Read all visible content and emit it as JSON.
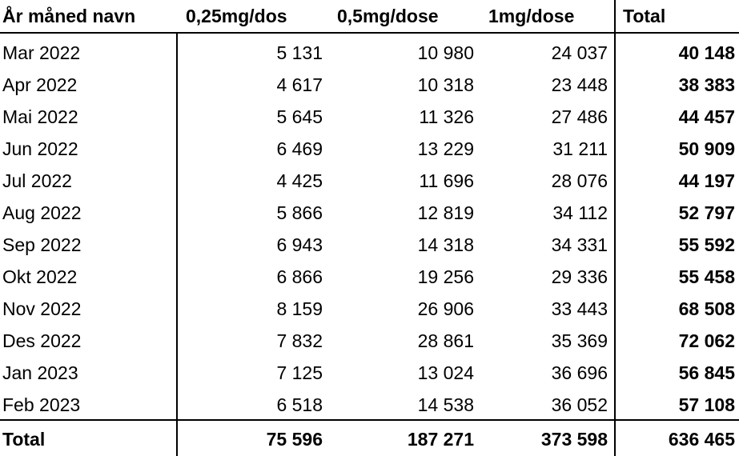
{
  "headers": [
    "År måned navn",
    "0,25mg/dos",
    "0,5mg/dose",
    "1mg/dose",
    "Total"
  ],
  "rows": [
    [
      "Mar 2022",
      "5 131",
      "10 980",
      "24 037",
      "40 148"
    ],
    [
      "Apr 2022",
      "4 617",
      "10 318",
      "23 448",
      "38 383"
    ],
    [
      "Mai 2022",
      "5 645",
      "11 326",
      "27 486",
      "44 457"
    ],
    [
      "Jun 2022",
      "6 469",
      "13 229",
      "31 211",
      "50 909"
    ],
    [
      "Jul 2022",
      "4 425",
      "11 696",
      "28 076",
      "44 197"
    ],
    [
      "Aug 2022",
      "5 866",
      "12 819",
      "34 112",
      "52 797"
    ],
    [
      "Sep 2022",
      "6 943",
      "14 318",
      "34 331",
      "55 592"
    ],
    [
      "Okt 2022",
      "6 866",
      "19 256",
      "29 336",
      "55 458"
    ],
    [
      "Nov 2022",
      "8 159",
      "26 906",
      "33 443",
      "68 508"
    ],
    [
      "Des 2022",
      "7 832",
      "28 861",
      "35 369",
      "72 062"
    ],
    [
      "Jan 2023",
      "7 125",
      "13 024",
      "36 696",
      "56 845"
    ],
    [
      "Feb 2023",
      "6 518",
      "14 538",
      "36 052",
      "57 108"
    ]
  ],
  "totals": [
    "Total",
    "75 596",
    "187 271",
    "373 598",
    "636 465"
  ]
}
